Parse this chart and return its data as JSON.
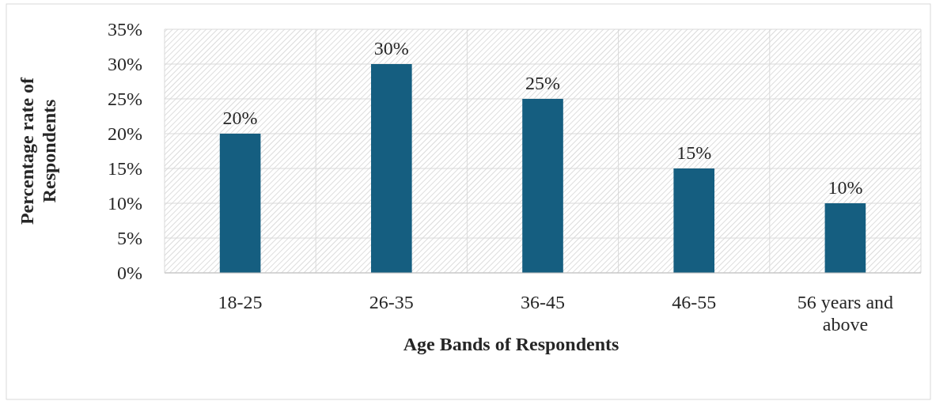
{
  "chart_data": {
    "type": "bar",
    "xlabel": "Age Bands of Respondents",
    "ylabel": "Percentage rate of Respondents",
    "categories": [
      "18-25",
      "26-35",
      "36-45",
      "46-55",
      "56 years and above"
    ],
    "values": [
      20,
      30,
      25,
      15,
      10
    ],
    "value_labels": [
      "20%",
      "30%",
      "25%",
      "15%",
      "10%"
    ],
    "color": "#155e80",
    "ylim": [
      0,
      35
    ],
    "yticks": [
      {
        "value": 0,
        "label": "0%"
      },
      {
        "value": 5,
        "label": "5%"
      },
      {
        "value": 10,
        "label": "10%"
      },
      {
        "value": 15,
        "label": "15%"
      },
      {
        "value": 20,
        "label": "20%"
      },
      {
        "value": 25,
        "label": "25%"
      },
      {
        "value": 30,
        "label": "30%"
      },
      {
        "value": 35,
        "label": "35%"
      }
    ],
    "grid": true
  }
}
